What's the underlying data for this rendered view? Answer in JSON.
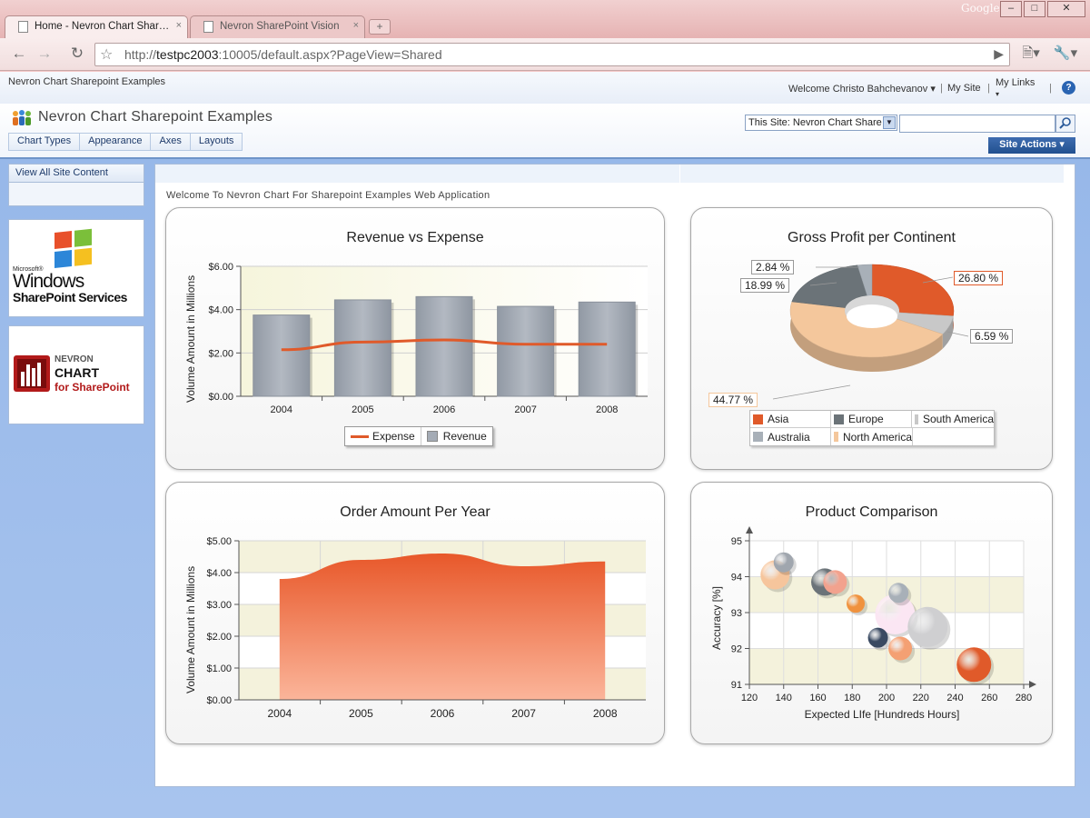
{
  "browser": {
    "tabs": [
      {
        "label": "Home - Nevron Chart Shar…",
        "close": "×"
      },
      {
        "label": "Nevron SharePoint Vision",
        "close": "×"
      }
    ],
    "new_tab": "+",
    "brand": "Google",
    "url_prefix": "http://",
    "url_host": "testpc2003",
    "url_rest": ":10005/default.aspx?PageView=Shared"
  },
  "sharepoint": {
    "site_label": "Nevron Chart Sharepoint Examples",
    "welcome": "Welcome Christo Bahchevanov ▾",
    "my_site": "My Site",
    "my_links": "My Links",
    "help": "?",
    "title": "Nevron Chart Sharepoint Examples",
    "topnav": [
      "Chart Types",
      "Appearance",
      "Axes",
      "Layouts"
    ],
    "search_scope": "This Site: Nevron Chart Share",
    "site_actions": "Site Actions ▾",
    "view_all": "View All Site Content",
    "welcome_text": "Welcome To Nevron Chart For Sharepoint Examples Web Application",
    "logo_windows_small": "Microsoft®",
    "logo_windows_big": "Windows",
    "logo_windows_sub": "SharePoint Services",
    "logo_nevron_1": "NEVRON",
    "logo_nevron_2": "CHART",
    "logo_nevron_3": "for SharePoint"
  },
  "colors": {
    "expense": "#e05a2a",
    "revenue": "#a4abb5",
    "asia": "#e05a2a",
    "europe": "#6b7378",
    "south_america": "#c8c8c8",
    "australia": "#a8b0b8",
    "north_america": "#f4c79c"
  },
  "chart_data": [
    {
      "type": "bar",
      "title": "Revenue vs Expense",
      "ylabel": "Volume Amount in Millions",
      "categories": [
        "2004",
        "2005",
        "2006",
        "2007",
        "2008"
      ],
      "yticks": [
        "$0.00",
        "$2.00",
        "$4.00",
        "$6.00"
      ],
      "ylim": [
        0,
        6
      ],
      "series": [
        {
          "name": "Revenue",
          "type": "bar",
          "values": [
            3.75,
            4.45,
            4.6,
            4.15,
            4.35
          ]
        },
        {
          "name": "Expense",
          "type": "line",
          "values": [
            2.15,
            2.5,
            2.6,
            2.4,
            2.4
          ]
        }
      ],
      "legend": [
        "Expense",
        "Revenue"
      ],
      "grid": true
    },
    {
      "type": "pie",
      "title": "Gross Profit per Continent",
      "slices": [
        {
          "name": "Asia",
          "value": 26.8,
          "label": "26.80  %"
        },
        {
          "name": "South America",
          "value": 6.59,
          "label": "6.59  %"
        },
        {
          "name": "North America",
          "value": 44.77,
          "label": "44.77  %"
        },
        {
          "name": "Europe",
          "value": 18.99,
          "label": "18.99  %"
        },
        {
          "name": "Australia",
          "value": 2.84,
          "label": "2.84  %"
        }
      ],
      "legend": [
        "Asia",
        "Europe",
        "South America",
        "Australia",
        "North America"
      ]
    },
    {
      "type": "area",
      "title": "Order Amount Per Year",
      "ylabel": "Volume Amount in Millions",
      "categories": [
        "2004",
        "2005",
        "2006",
        "2007",
        "2008"
      ],
      "yticks": [
        "$0.00",
        "$1.00",
        "$2.00",
        "$3.00",
        "$4.00",
        "$5.00"
      ],
      "ylim": [
        0,
        5
      ],
      "values": [
        3.8,
        4.4,
        4.6,
        4.2,
        4.35
      ],
      "grid": true
    },
    {
      "type": "scatter",
      "title": "Product Comparison",
      "xlabel": "Expected LIfe [Hundreds Hours]",
      "ylabel": "Accuracy [%]",
      "xticks": [
        "120",
        "140",
        "160",
        "180",
        "200",
        "220",
        "240",
        "260",
        "280"
      ],
      "yticks": [
        "91",
        "92",
        "93",
        "94",
        "95"
      ],
      "xlim": [
        120,
        280
      ],
      "ylim": [
        91,
        95
      ],
      "points": [
        {
          "x": 135,
          "y": 94.05,
          "size": 16,
          "color": "#f6c59c"
        },
        {
          "x": 140,
          "y": 94.4,
          "size": 11,
          "color": "#a0a6ae"
        },
        {
          "x": 164,
          "y": 93.85,
          "size": 15,
          "color": "#6b7378"
        },
        {
          "x": 170,
          "y": 93.85,
          "size": 13,
          "color": "#f2a28e"
        },
        {
          "x": 182,
          "y": 93.25,
          "size": 10,
          "color": "#f0923e"
        },
        {
          "x": 205,
          "y": 92.95,
          "size": 22,
          "color": "#fbe6f3"
        },
        {
          "x": 207,
          "y": 93.55,
          "size": 11,
          "color": "#a8b0b8"
        },
        {
          "x": 224,
          "y": 92.6,
          "size": 22,
          "color": "#cfcfd1"
        },
        {
          "x": 195,
          "y": 92.3,
          "size": 11,
          "color": "#3a4a62"
        },
        {
          "x": 208,
          "y": 92.0,
          "size": 13,
          "color": "#f4a073"
        },
        {
          "x": 251,
          "y": 91.55,
          "size": 19,
          "color": "#e05a2a"
        }
      ],
      "grid": true
    }
  ]
}
